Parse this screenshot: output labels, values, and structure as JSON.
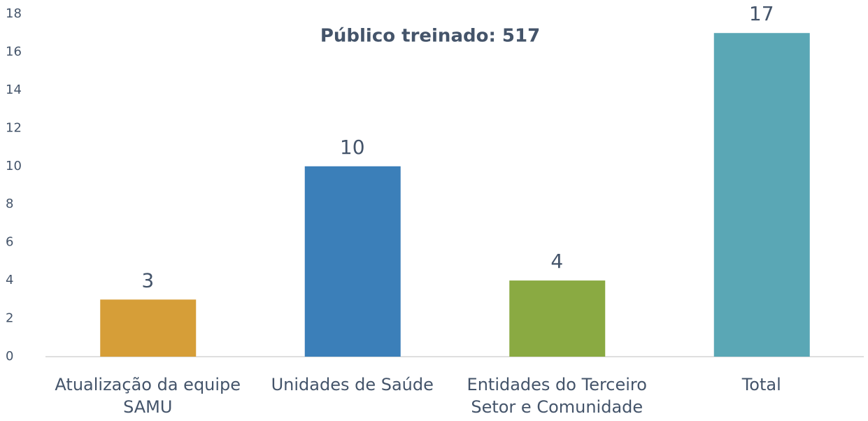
{
  "chart_data": {
    "type": "bar",
    "title": "Público treinado: 517",
    "categories": [
      "Atualização da equipe SAMU",
      "Unidades de Saúde",
      "Entidades do Terceiro Setor e Comunidade",
      "Total"
    ],
    "values": [
      3,
      10,
      4,
      17
    ],
    "colors": [
      "#d69e38",
      "#3b7fb9",
      "#8aaa42",
      "#5aa7b5"
    ],
    "ylim": [
      0,
      18
    ],
    "yticks": [
      0,
      2,
      4,
      6,
      8,
      10,
      12,
      14,
      16,
      18
    ],
    "grid": false
  }
}
